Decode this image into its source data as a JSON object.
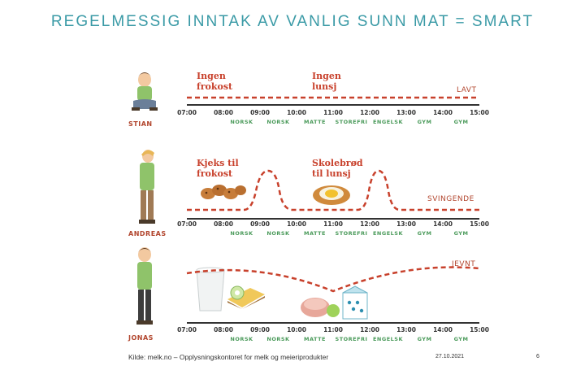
{
  "title": "REGELMESSIG INNTAK AV VANLIG SUNN MAT = SMART",
  "times": [
    "07:00",
    "08:00",
    "09:00",
    "10:00",
    "11:00",
    "12:00",
    "13:00",
    "14:00",
    "15:00"
  ],
  "subjects": [
    "NORSK",
    "NORSK",
    "MATTE",
    "STOREFRI",
    "ENGELSK",
    "GYM",
    "GYM"
  ],
  "panels": [
    {
      "name": "STIAN",
      "annot1": [
        "Ingen",
        "frokost"
      ],
      "annot2": [
        "Ingen",
        "lunsj"
      ],
      "level": "LAVT"
    },
    {
      "name": "ANDREAS",
      "annot1": [
        "Kjeks til",
        "frokost"
      ],
      "annot2": [
        "Skolebrød",
        "til lunsj"
      ],
      "level": "SVINGENDE"
    },
    {
      "name": "JONAS",
      "level": "JEVNT"
    }
  ],
  "footer": {
    "source": "Kilde: melk.no – Opplysningskontoret for melk og meieriprodukter",
    "date": "27.10.2021",
    "page": "6"
  },
  "colors": {
    "title": "#3a9aa6",
    "curve": "#c8412c",
    "subject": "#4a9a5a"
  }
}
